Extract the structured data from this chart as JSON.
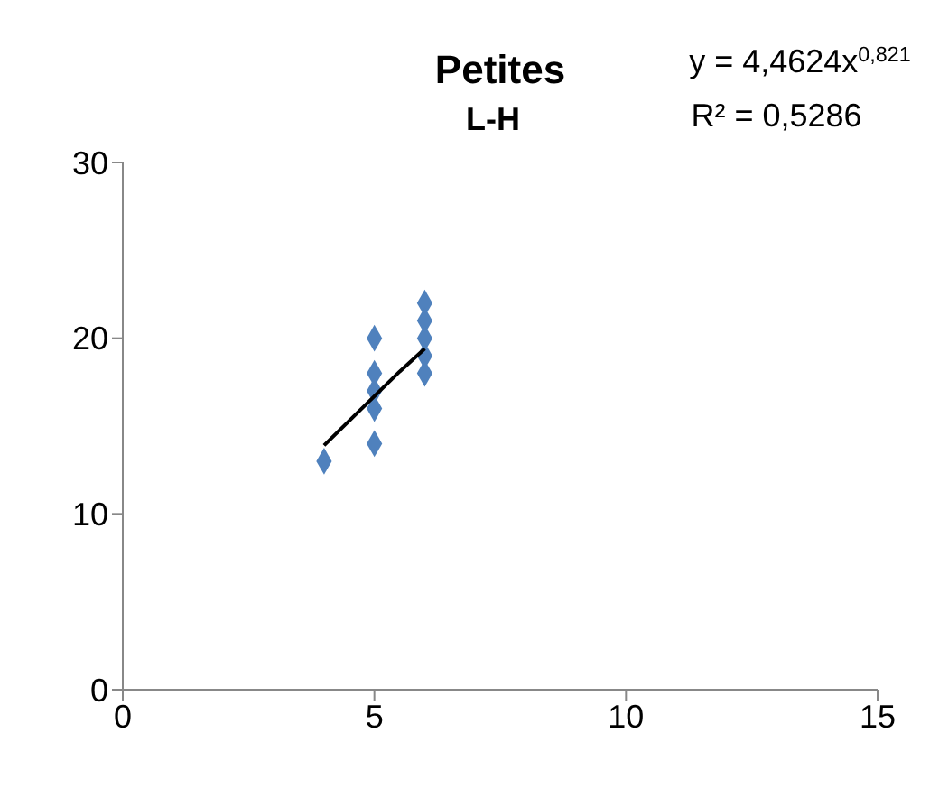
{
  "chart_data": {
    "type": "scatter",
    "title": "Petites",
    "subtitle": "L-H",
    "annotations": [
      "y = 4,4624x$^{0,821}$",
      "R² = 0,5286"
    ],
    "series": [
      {
        "type": "scatter",
        "color": "#4f81bd",
        "marker": "diamond",
        "x": [
          4,
          5,
          5,
          5,
          5,
          5,
          6,
          6,
          6,
          6,
          6
        ],
        "values": [
          13,
          20,
          18,
          17,
          16,
          14,
          22,
          21,
          20,
          19,
          18
        ]
      },
      {
        "type": "line",
        "color": "#000000",
        "marker": "none",
        "x": [
          4,
          4.5,
          5,
          5.5,
          6
        ],
        "values": [
          13.9,
          15.3,
          16.7,
          18.1,
          19.4
        ]
      }
    ],
    "xlim": [
      0,
      15
    ],
    "xticks": [
      0,
      5,
      10,
      15
    ],
    "ylim": [
      0,
      30
    ],
    "yticks": [
      0,
      10,
      20,
      30
    ],
    "grid": false,
    "legend": false
  }
}
